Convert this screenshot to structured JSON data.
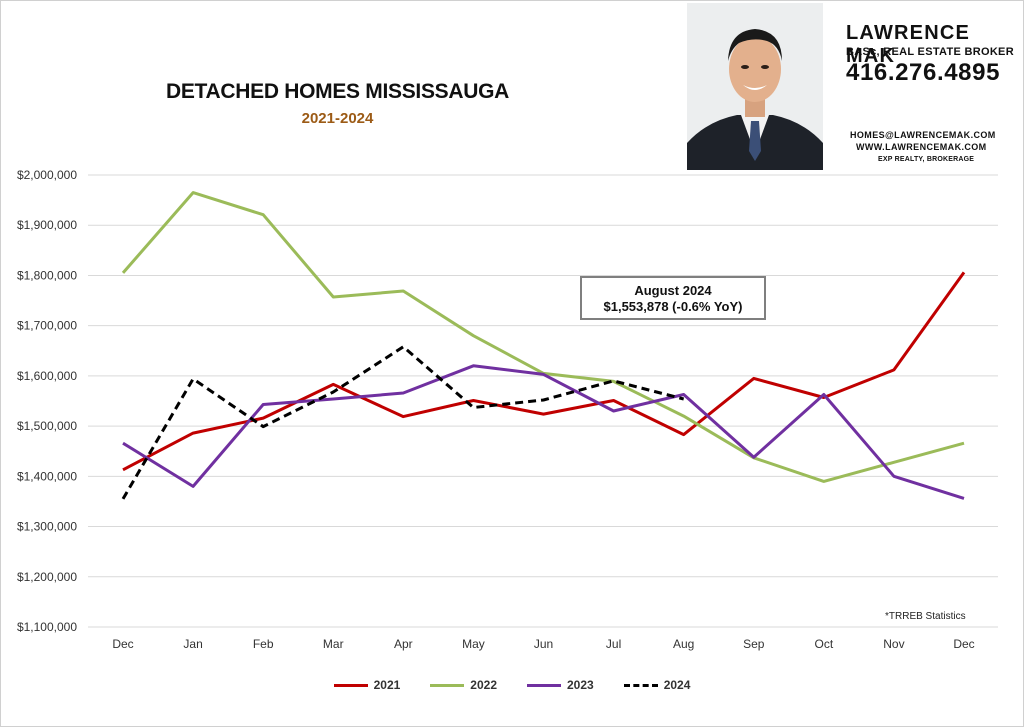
{
  "header": {
    "title": "DETACHED HOMES MISSISSAUGA",
    "subtitle": "2021-2024",
    "source_note": "*TRREB Statistics"
  },
  "agent": {
    "name": "LAWRENCE MAK",
    "credentials": "BASc, REAL ESTATE BROKER",
    "phone": "416.276.4895",
    "email": "HOMES@LAWRENCEMAK.COM",
    "website": "WWW.LAWRENCEMAK.COM",
    "brokerage": "EXP REALTY, BROKERAGE"
  },
  "callout": {
    "title": "August 2024",
    "value": "$1,553,878 (-0.6% YoY)"
  },
  "chart_data": {
    "type": "line",
    "title": "DETACHED HOMES MISSISSAUGA",
    "subtitle": "2021-2024",
    "categories": [
      "Dec",
      "Jan",
      "Feb",
      "Mar",
      "Apr",
      "May",
      "Jun",
      "Jul",
      "Aug",
      "Sep",
      "Oct",
      "Nov",
      "Dec"
    ],
    "ylim": [
      1100000,
      2000000
    ],
    "yticks": [
      1100000,
      1200000,
      1300000,
      1400000,
      1500000,
      1600000,
      1700000,
      1800000,
      1900000,
      2000000
    ],
    "ytick_labels": [
      "$1,100,000",
      "$1,200,000",
      "$1,300,000",
      "$1,400,000",
      "$1,500,000",
      "$1,600,000",
      "$1,700,000",
      "$1,800,000",
      "$1,900,000",
      "$2,000,000"
    ],
    "grid": true,
    "legend_position": "bottom",
    "series": [
      {
        "name": "2021",
        "color": "#c00000",
        "dash": false,
        "values": [
          1413000,
          1486000,
          1516000,
          1583000,
          1519000,
          1551000,
          1524000,
          1551000,
          1483000,
          1595000,
          1557000,
          1612000,
          1806000
        ]
      },
      {
        "name": "2022",
        "color": "#9bbb59",
        "dash": false,
        "values": [
          1805000,
          1965000,
          1921000,
          1757000,
          1769000,
          1680000,
          1605000,
          1589000,
          1520000,
          1437000,
          1390000,
          1428000,
          1466000
        ]
      },
      {
        "name": "2023",
        "color": "#7030a0",
        "dash": false,
        "values": [
          1466000,
          1380000,
          1543000,
          1554000,
          1566000,
          1620000,
          1603000,
          1530000,
          1563000,
          1438000,
          1563000,
          1400000,
          1356000
        ]
      },
      {
        "name": "2024",
        "color": "#000000",
        "dash": true,
        "values": [
          1355000,
          1594000,
          1499000,
          1568000,
          1658000,
          1537000,
          1552000,
          1590000,
          1554000,
          null,
          null,
          null,
          null
        ]
      }
    ]
  }
}
